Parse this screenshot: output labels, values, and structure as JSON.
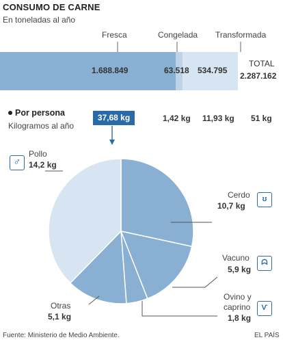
{
  "title": "CONSUMO DE CARNE",
  "subtitle": "En toneladas al año",
  "colors": {
    "fresca": "#89b0d3",
    "congelada": "#bcd3e8",
    "transformada": "#d6e5f1",
    "highlight": "#2b6aa8"
  },
  "bar": {
    "headers": {
      "fresca": "Fresca",
      "congelada": "Congelada",
      "transformada": "Transformada"
    },
    "values": {
      "fresca": "1.688.849",
      "congelada": "63.518",
      "transformada": "534.795"
    },
    "total_label": "TOTAL",
    "total_value": "2.287.162"
  },
  "per_person": {
    "title": "Por persona",
    "subtitle": "Kilogramos al año",
    "fresca": "37,68 kg",
    "congelada": "1,42 kg",
    "transformada": "11,93 kg",
    "total": "51 kg"
  },
  "pie_labels": {
    "pollo": {
      "name": "Pollo",
      "value": "14,2 kg"
    },
    "cerdo": {
      "name": "Cerdo",
      "value": "10,7 kg"
    },
    "vacuno": {
      "name": "Vacuno",
      "value": "5,9 kg"
    },
    "ovino": {
      "name1": "Ovino y",
      "name2": "caprino",
      "value": "1,8 kg"
    },
    "otras": {
      "name": "Otras",
      "value": "5,1 kg"
    }
  },
  "icons": {
    "pollo": "chicken-icon",
    "cerdo": "pig-icon",
    "vacuno": "cow-icon",
    "ovino": "sheep-icon"
  },
  "footer": {
    "source": "Fuente: Ministerio de Medio Ambiente.",
    "brand": "EL PAÍS"
  },
  "chart_data": [
    {
      "type": "bar",
      "title": "CONSUMO DE CARNE",
      "subtitle": "En toneladas al año",
      "stacked": true,
      "categories": [
        "Fresca",
        "Congelada",
        "Transformada"
      ],
      "values": [
        1688849,
        63518,
        534795
      ],
      "total": 2287162
    },
    {
      "type": "pie",
      "title": "Por persona",
      "subtitle": "Kilogramos al año",
      "categories": [
        "Cerdo",
        "Vacuno",
        "Ovino y caprino",
        "Otras",
        "Pollo"
      ],
      "values": [
        10.7,
        5.9,
        1.8,
        5.1,
        14.2
      ],
      "total": 37.68
    }
  ]
}
